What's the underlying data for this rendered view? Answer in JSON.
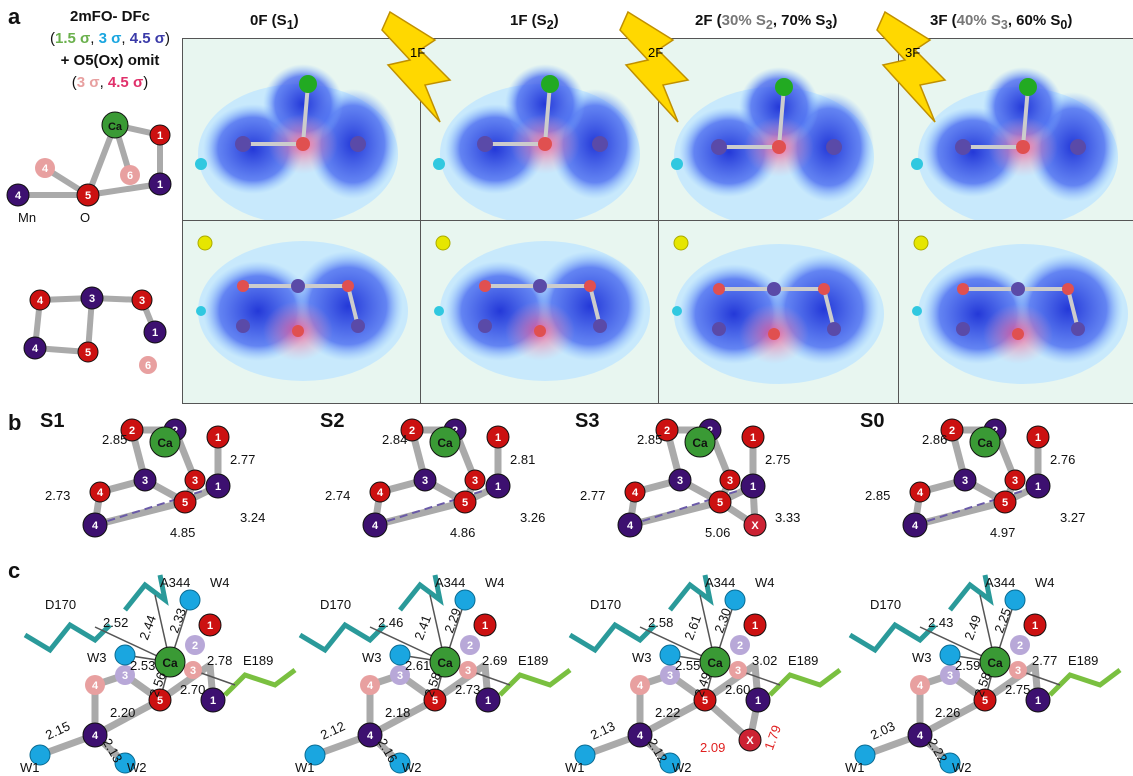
{
  "panel_labels": {
    "a": "a",
    "b": "b",
    "c": "c"
  },
  "legend": {
    "line1": "2mFO- DFc",
    "sig_open": "(",
    "sig1": "1.5 σ",
    "sig2": "3 σ",
    "sig3": "4.5 σ",
    "sig_close": ")",
    "omit": "+ O5(Ox) omit",
    "sig4": "3 σ",
    "sig5": "4.5 σ",
    "ca": "Ca",
    "mn": "Mn",
    "o": "O",
    "colors": {
      "green": "#6ab04c",
      "cyan": "#1aa6e0",
      "blue": "#3a3aa8",
      "pink": "#e8a0a0",
      "magenta": "#e0306a"
    }
  },
  "columns": [
    {
      "title": "0F (S1)",
      "flash": ""
    },
    {
      "title": "1F (S2)",
      "flash": "1F"
    },
    {
      "title": "2F (30% S2, 70% S3)",
      "flash": "2F"
    },
    {
      "title": "3F (40% S3, 60% S0)",
      "flash": "3F"
    }
  ],
  "states_b": [
    {
      "label": "S1",
      "d1": "2.85",
      "d2": "2.77",
      "d3": "2.73",
      "d4": "3.24",
      "d5": "4.85"
    },
    {
      "label": "S2",
      "d1": "2.84",
      "d2": "2.81",
      "d3": "2.74",
      "d4": "3.26",
      "d5": "4.86"
    },
    {
      "label": "S3",
      "d1": "2.85",
      "d2": "2.75",
      "d3": "2.77",
      "d4": "3.33",
      "d5": "5.06"
    },
    {
      "label": "S0",
      "d1": "2.86",
      "d2": "2.76",
      "d3": "2.85",
      "d4": "3.27",
      "d5": "4.97"
    }
  ],
  "states_c": [
    {
      "d_d170": "2.52",
      "d_a344a": "2.44",
      "d_a344b": "2.33",
      "d_w3": "2.53",
      "d_o5": "2.56",
      "d_e189": "2.78",
      "d_o1": "2.70",
      "d_45": "2.20",
      "d_w1": "2.15",
      "d_w2": "2.13"
    },
    {
      "d_d170": "2.46",
      "d_a344a": "2.41",
      "d_a344b": "2.29",
      "d_w3": "2.61",
      "d_o5": "2.58",
      "d_e189": "2.69",
      "d_o1": "2.73",
      "d_45": "2.18",
      "d_w1": "2.12",
      "d_w2": "2.16"
    },
    {
      "d_d170": "2.58",
      "d_a344a": "2.61",
      "d_a344b": "2.30",
      "d_w3": "2.55",
      "d_o5": "2.49",
      "d_e189": "3.02",
      "d_o1": "2.60",
      "d_45": "2.22",
      "d_w1": "2.13",
      "d_w2": "2.12",
      "d_x1": "2.09",
      "d_x2": "1.79"
    },
    {
      "d_d170": "2.43",
      "d_a344a": "2.49",
      "d_a344b": "2.25",
      "d_w3": "2.59",
      "d_o5": "2.58",
      "d_e189": "2.77",
      "d_o1": "2.75",
      "d_45": "2.26",
      "d_w1": "2.03",
      "d_w2": "2.22"
    }
  ],
  "residues": {
    "d170": "D170",
    "a344": "A344",
    "e189": "E189",
    "w1": "W1",
    "w2": "W2",
    "w3": "W3",
    "w4": "W4",
    "x": "X"
  }
}
